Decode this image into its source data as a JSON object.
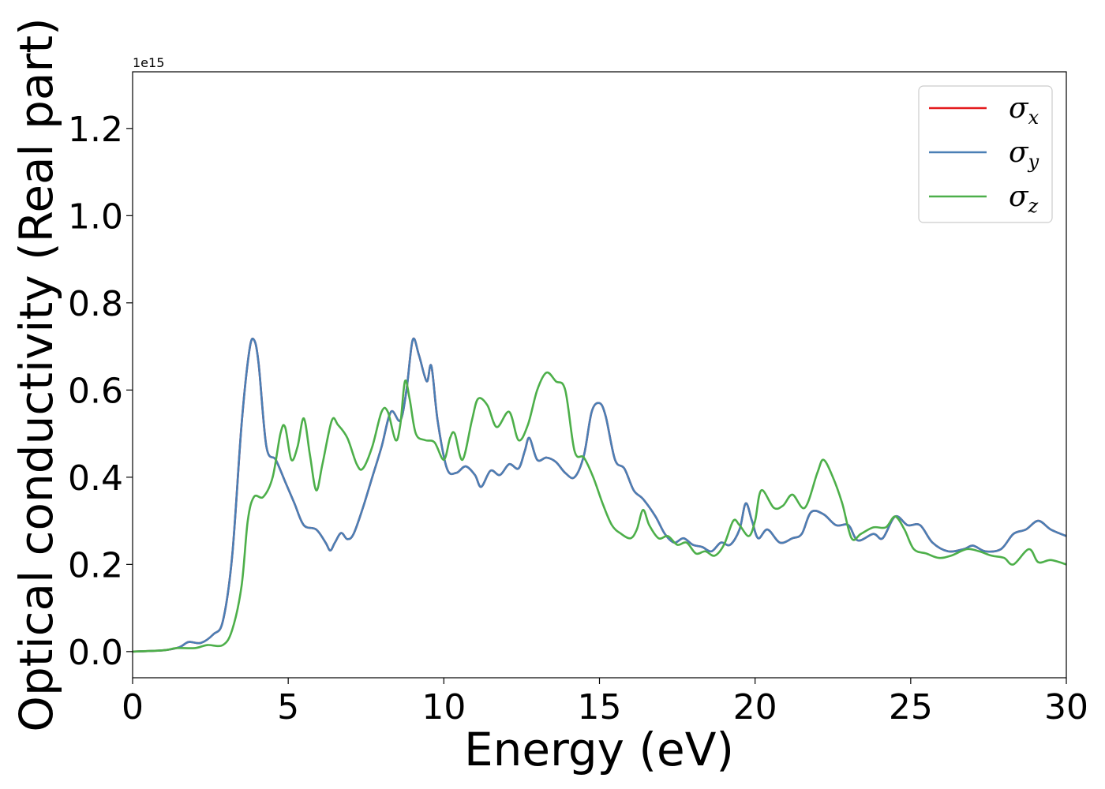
{
  "chart_data": {
    "type": "line",
    "xlabel": "Energy (eV)",
    "ylabel": "Optical conductivity (Real part)",
    "y_offset_label": "1e15",
    "xlim": [
      0,
      30
    ],
    "ylim": [
      -0.06,
      1.33
    ],
    "x_ticks": [
      0,
      5,
      10,
      15,
      20,
      25,
      30
    ],
    "x_tick_labels": [
      "0",
      "5",
      "10",
      "15",
      "20",
      "25",
      "30"
    ],
    "y_ticks": [
      0.0,
      0.2,
      0.4,
      0.6,
      0.8,
      1.0,
      1.2
    ],
    "y_tick_labels": [
      "0.0",
      "0.2",
      "0.4",
      "0.6",
      "0.8",
      "1.0",
      "1.2"
    ],
    "grid": false,
    "legend_position": "top-right",
    "series": [
      {
        "name": "σx",
        "legend_symbol": "σ",
        "legend_subscript": "x",
        "color": "#e41a1c",
        "points": [
          [
            0,
            0
          ],
          [
            1,
            0.003
          ],
          [
            1.5,
            0.01
          ],
          [
            1.8,
            0.022
          ],
          [
            2.2,
            0.02
          ],
          [
            2.6,
            0.04
          ],
          [
            2.9,
            0.07
          ],
          [
            3.2,
            0.22
          ],
          [
            3.5,
            0.52
          ],
          [
            3.75,
            0.69
          ],
          [
            3.9,
            0.715
          ],
          [
            4.05,
            0.66
          ],
          [
            4.3,
            0.47
          ],
          [
            4.6,
            0.44
          ],
          [
            4.9,
            0.39
          ],
          [
            5.2,
            0.34
          ],
          [
            5.5,
            0.29
          ],
          [
            5.9,
            0.28
          ],
          [
            6.2,
            0.25
          ],
          [
            6.35,
            0.232
          ],
          [
            6.5,
            0.25
          ],
          [
            6.7,
            0.272
          ],
          [
            6.9,
            0.258
          ],
          [
            7.1,
            0.27
          ],
          [
            7.4,
            0.33
          ],
          [
            7.7,
            0.4
          ],
          [
            8.0,
            0.47
          ],
          [
            8.3,
            0.55
          ],
          [
            8.6,
            0.53
          ],
          [
            8.8,
            0.6
          ],
          [
            9.0,
            0.715
          ],
          [
            9.2,
            0.68
          ],
          [
            9.45,
            0.62
          ],
          [
            9.6,
            0.655
          ],
          [
            9.8,
            0.53
          ],
          [
            10.1,
            0.42
          ],
          [
            10.4,
            0.41
          ],
          [
            10.7,
            0.425
          ],
          [
            11.0,
            0.405
          ],
          [
            11.2,
            0.378
          ],
          [
            11.5,
            0.415
          ],
          [
            11.8,
            0.405
          ],
          [
            12.1,
            0.43
          ],
          [
            12.4,
            0.42
          ],
          [
            12.6,
            0.46
          ],
          [
            12.75,
            0.49
          ],
          [
            13.0,
            0.44
          ],
          [
            13.3,
            0.445
          ],
          [
            13.6,
            0.435
          ],
          [
            13.9,
            0.41
          ],
          [
            14.2,
            0.4
          ],
          [
            14.5,
            0.45
          ],
          [
            14.75,
            0.55
          ],
          [
            15.0,
            0.57
          ],
          [
            15.2,
            0.54
          ],
          [
            15.5,
            0.44
          ],
          [
            15.8,
            0.42
          ],
          [
            16.1,
            0.37
          ],
          [
            16.4,
            0.35
          ],
          [
            16.8,
            0.31
          ],
          [
            17.1,
            0.27
          ],
          [
            17.4,
            0.25
          ],
          [
            17.7,
            0.26
          ],
          [
            18.0,
            0.245
          ],
          [
            18.3,
            0.24
          ],
          [
            18.6,
            0.23
          ],
          [
            18.9,
            0.25
          ],
          [
            19.2,
            0.245
          ],
          [
            19.5,
            0.28
          ],
          [
            19.7,
            0.34
          ],
          [
            19.9,
            0.3
          ],
          [
            20.1,
            0.26
          ],
          [
            20.4,
            0.28
          ],
          [
            20.8,
            0.25
          ],
          [
            21.2,
            0.26
          ],
          [
            21.5,
            0.27
          ],
          [
            21.8,
            0.32
          ],
          [
            22.2,
            0.315
          ],
          [
            22.6,
            0.29
          ],
          [
            23.0,
            0.29
          ],
          [
            23.3,
            0.255
          ],
          [
            23.8,
            0.27
          ],
          [
            24.1,
            0.26
          ],
          [
            24.5,
            0.31
          ],
          [
            24.9,
            0.29
          ],
          [
            25.3,
            0.29
          ],
          [
            25.7,
            0.25
          ],
          [
            26.2,
            0.23
          ],
          [
            26.7,
            0.235
          ],
          [
            27.0,
            0.243
          ],
          [
            27.4,
            0.23
          ],
          [
            27.9,
            0.235
          ],
          [
            28.3,
            0.27
          ],
          [
            28.7,
            0.28
          ],
          [
            29.1,
            0.3
          ],
          [
            29.5,
            0.28
          ],
          [
            30.0,
            0.265
          ]
        ]
      },
      {
        "name": "σy",
        "legend_symbol": "σ",
        "legend_subscript": "y",
        "color": "#4a7fb5",
        "points": [
          [
            0,
            0
          ],
          [
            1,
            0.003
          ],
          [
            1.5,
            0.01
          ],
          [
            1.8,
            0.022
          ],
          [
            2.2,
            0.02
          ],
          [
            2.6,
            0.04
          ],
          [
            2.9,
            0.07
          ],
          [
            3.2,
            0.22
          ],
          [
            3.5,
            0.52
          ],
          [
            3.75,
            0.69
          ],
          [
            3.9,
            0.715
          ],
          [
            4.05,
            0.66
          ],
          [
            4.3,
            0.47
          ],
          [
            4.6,
            0.44
          ],
          [
            4.9,
            0.39
          ],
          [
            5.2,
            0.34
          ],
          [
            5.5,
            0.29
          ],
          [
            5.9,
            0.28
          ],
          [
            6.2,
            0.25
          ],
          [
            6.35,
            0.232
          ],
          [
            6.5,
            0.25
          ],
          [
            6.7,
            0.272
          ],
          [
            6.9,
            0.258
          ],
          [
            7.1,
            0.27
          ],
          [
            7.4,
            0.33
          ],
          [
            7.7,
            0.4
          ],
          [
            8.0,
            0.47
          ],
          [
            8.3,
            0.55
          ],
          [
            8.6,
            0.53
          ],
          [
            8.8,
            0.6
          ],
          [
            9.0,
            0.715
          ],
          [
            9.2,
            0.68
          ],
          [
            9.45,
            0.62
          ],
          [
            9.6,
            0.655
          ],
          [
            9.8,
            0.53
          ],
          [
            10.1,
            0.42
          ],
          [
            10.4,
            0.41
          ],
          [
            10.7,
            0.425
          ],
          [
            11.0,
            0.405
          ],
          [
            11.2,
            0.378
          ],
          [
            11.5,
            0.415
          ],
          [
            11.8,
            0.405
          ],
          [
            12.1,
            0.43
          ],
          [
            12.4,
            0.42
          ],
          [
            12.6,
            0.46
          ],
          [
            12.75,
            0.49
          ],
          [
            13.0,
            0.44
          ],
          [
            13.3,
            0.445
          ],
          [
            13.6,
            0.435
          ],
          [
            13.9,
            0.41
          ],
          [
            14.2,
            0.4
          ],
          [
            14.5,
            0.45
          ],
          [
            14.75,
            0.55
          ],
          [
            15.0,
            0.57
          ],
          [
            15.2,
            0.54
          ],
          [
            15.5,
            0.44
          ],
          [
            15.8,
            0.42
          ],
          [
            16.1,
            0.37
          ],
          [
            16.4,
            0.35
          ],
          [
            16.8,
            0.31
          ],
          [
            17.1,
            0.27
          ],
          [
            17.4,
            0.25
          ],
          [
            17.7,
            0.26
          ],
          [
            18.0,
            0.245
          ],
          [
            18.3,
            0.24
          ],
          [
            18.6,
            0.23
          ],
          [
            18.9,
            0.25
          ],
          [
            19.2,
            0.245
          ],
          [
            19.5,
            0.28
          ],
          [
            19.7,
            0.34
          ],
          [
            19.9,
            0.3
          ],
          [
            20.1,
            0.26
          ],
          [
            20.4,
            0.28
          ],
          [
            20.8,
            0.25
          ],
          [
            21.2,
            0.26
          ],
          [
            21.5,
            0.27
          ],
          [
            21.8,
            0.32
          ],
          [
            22.2,
            0.315
          ],
          [
            22.6,
            0.29
          ],
          [
            23.0,
            0.29
          ],
          [
            23.3,
            0.255
          ],
          [
            23.8,
            0.27
          ],
          [
            24.1,
            0.26
          ],
          [
            24.5,
            0.31
          ],
          [
            24.9,
            0.29
          ],
          [
            25.3,
            0.29
          ],
          [
            25.7,
            0.25
          ],
          [
            26.2,
            0.23
          ],
          [
            26.7,
            0.235
          ],
          [
            27.0,
            0.243
          ],
          [
            27.4,
            0.23
          ],
          [
            27.9,
            0.235
          ],
          [
            28.3,
            0.27
          ],
          [
            28.7,
            0.28
          ],
          [
            29.1,
            0.3
          ],
          [
            29.5,
            0.28
          ],
          [
            30.0,
            0.265
          ]
        ]
      },
      {
        "name": "σz",
        "legend_symbol": "σ",
        "legend_subscript": "z",
        "color": "#4daf4a",
        "points": [
          [
            0,
            0
          ],
          [
            1,
            0.003
          ],
          [
            1.4,
            0.008
          ],
          [
            2.0,
            0.008
          ],
          [
            2.4,
            0.015
          ],
          [
            2.9,
            0.015
          ],
          [
            3.2,
            0.05
          ],
          [
            3.5,
            0.15
          ],
          [
            3.7,
            0.3
          ],
          [
            3.9,
            0.355
          ],
          [
            4.2,
            0.355
          ],
          [
            4.5,
            0.4
          ],
          [
            4.75,
            0.5
          ],
          [
            4.9,
            0.515
          ],
          [
            5.1,
            0.44
          ],
          [
            5.3,
            0.47
          ],
          [
            5.5,
            0.535
          ],
          [
            5.7,
            0.45
          ],
          [
            5.9,
            0.37
          ],
          [
            6.1,
            0.43
          ],
          [
            6.4,
            0.53
          ],
          [
            6.6,
            0.52
          ],
          [
            6.9,
            0.49
          ],
          [
            7.2,
            0.43
          ],
          [
            7.4,
            0.42
          ],
          [
            7.7,
            0.47
          ],
          [
            8.0,
            0.55
          ],
          [
            8.2,
            0.55
          ],
          [
            8.45,
            0.485
          ],
          [
            8.6,
            0.52
          ],
          [
            8.75,
            0.62
          ],
          [
            8.9,
            0.58
          ],
          [
            9.1,
            0.5
          ],
          [
            9.4,
            0.485
          ],
          [
            9.7,
            0.48
          ],
          [
            10.0,
            0.44
          ],
          [
            10.2,
            0.49
          ],
          [
            10.35,
            0.5
          ],
          [
            10.6,
            0.44
          ],
          [
            10.9,
            0.53
          ],
          [
            11.1,
            0.58
          ],
          [
            11.4,
            0.565
          ],
          [
            11.7,
            0.515
          ],
          [
            12.1,
            0.55
          ],
          [
            12.4,
            0.485
          ],
          [
            12.7,
            0.52
          ],
          [
            13.0,
            0.6
          ],
          [
            13.3,
            0.64
          ],
          [
            13.6,
            0.62
          ],
          [
            13.9,
            0.6
          ],
          [
            14.2,
            0.46
          ],
          [
            14.5,
            0.445
          ],
          [
            14.8,
            0.4
          ],
          [
            15.1,
            0.34
          ],
          [
            15.4,
            0.29
          ],
          [
            15.7,
            0.27
          ],
          [
            16.0,
            0.26
          ],
          [
            16.2,
            0.28
          ],
          [
            16.4,
            0.325
          ],
          [
            16.6,
            0.29
          ],
          [
            16.9,
            0.26
          ],
          [
            17.2,
            0.265
          ],
          [
            17.5,
            0.245
          ],
          [
            17.8,
            0.25
          ],
          [
            18.1,
            0.225
          ],
          [
            18.4,
            0.23
          ],
          [
            18.7,
            0.22
          ],
          [
            19.0,
            0.245
          ],
          [
            19.3,
            0.3
          ],
          [
            19.5,
            0.29
          ],
          [
            19.8,
            0.265
          ],
          [
            20.0,
            0.3
          ],
          [
            20.2,
            0.37
          ],
          [
            20.6,
            0.33
          ],
          [
            20.9,
            0.335
          ],
          [
            21.2,
            0.36
          ],
          [
            21.6,
            0.33
          ],
          [
            22.0,
            0.41
          ],
          [
            22.2,
            0.44
          ],
          [
            22.5,
            0.4
          ],
          [
            22.8,
            0.34
          ],
          [
            23.1,
            0.26
          ],
          [
            23.4,
            0.27
          ],
          [
            23.8,
            0.285
          ],
          [
            24.2,
            0.285
          ],
          [
            24.5,
            0.31
          ],
          [
            24.8,
            0.28
          ],
          [
            25.1,
            0.235
          ],
          [
            25.5,
            0.225
          ],
          [
            25.9,
            0.215
          ],
          [
            26.3,
            0.22
          ],
          [
            26.8,
            0.235
          ],
          [
            27.2,
            0.23
          ],
          [
            27.6,
            0.22
          ],
          [
            28.0,
            0.215
          ],
          [
            28.3,
            0.2
          ],
          [
            28.8,
            0.235
          ],
          [
            29.1,
            0.205
          ],
          [
            29.5,
            0.21
          ],
          [
            30.0,
            0.2
          ]
        ]
      }
    ]
  }
}
